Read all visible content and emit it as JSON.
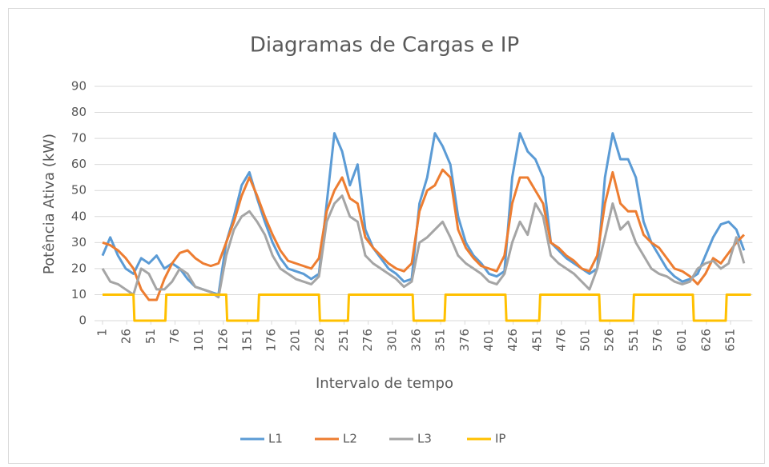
{
  "chart_data": {
    "type": "line",
    "title": "Diagramas de Cargas e IP",
    "x_label": "Intervalo de tempo",
    "y_label": "Potência Ativa (kW)",
    "xlim": [
      1,
      672
    ],
    "xticks": [
      1,
      26,
      51,
      76,
      101,
      126,
      151,
      176,
      201,
      226,
      251,
      276,
      301,
      326,
      351,
      376,
      401,
      426,
      451,
      476,
      501,
      526,
      551,
      576,
      601,
      626,
      651
    ],
    "ylim": [
      0,
      90
    ],
    "yticks": [
      0,
      10,
      20,
      30,
      40,
      50,
      60,
      70,
      80,
      90
    ],
    "grid": true,
    "legend": "bottom",
    "series": [
      {
        "name": "L1",
        "color": "#5b9bd5",
        "x": [
          1,
          9,
          17,
          25,
          33,
          41,
          49,
          57,
          65,
          73,
          81,
          89,
          97,
          105,
          113,
          121,
          129,
          137,
          145,
          153,
          161,
          169,
          177,
          185,
          193,
          201,
          209,
          217,
          225,
          233,
          241,
          249,
          257,
          265,
          273,
          281,
          289,
          297,
          305,
          313,
          321,
          329,
          337,
          345,
          353,
          361,
          369,
          377,
          385,
          393,
          401,
          409,
          417,
          425,
          433,
          441,
          449,
          457,
          465,
          473,
          481,
          489,
          497,
          505,
          513,
          521,
          529,
          537,
          545,
          553,
          561,
          569,
          577,
          585,
          593,
          601,
          609,
          617,
          625,
          633,
          641,
          649,
          657,
          665
        ],
        "values": [
          25,
          32,
          25,
          20,
          18,
          24,
          22,
          25,
          20,
          22,
          20,
          16,
          13,
          12,
          11,
          10,
          30,
          40,
          52,
          57,
          47,
          38,
          30,
          24,
          20,
          19,
          18,
          16,
          18,
          45,
          72,
          65,
          52,
          60,
          35,
          28,
          24,
          20,
          18,
          15,
          16,
          45,
          55,
          72,
          67,
          60,
          40,
          30,
          25,
          22,
          18,
          17,
          19,
          55,
          72,
          65,
          62,
          55,
          30,
          27,
          24,
          22,
          20,
          18,
          20,
          55,
          72,
          62,
          62,
          55,
          38,
          30,
          25,
          20,
          17,
          15,
          16,
          18,
          25,
          32,
          37,
          38,
          35,
          27
        ]
      },
      {
        "name": "L2",
        "color": "#ed7d31",
        "x": [
          1,
          9,
          17,
          25,
          33,
          41,
          49,
          57,
          65,
          73,
          81,
          89,
          97,
          105,
          113,
          121,
          129,
          137,
          145,
          153,
          161,
          169,
          177,
          185,
          193,
          201,
          209,
          217,
          225,
          233,
          241,
          249,
          257,
          265,
          273,
          281,
          289,
          297,
          305,
          313,
          321,
          329,
          337,
          345,
          353,
          361,
          369,
          377,
          385,
          393,
          401,
          409,
          417,
          425,
          433,
          441,
          449,
          457,
          465,
          473,
          481,
          489,
          497,
          505,
          513,
          521,
          529,
          537,
          545,
          553,
          561,
          569,
          577,
          585,
          593,
          601,
          609,
          617,
          625,
          633,
          641,
          649,
          657,
          665
        ],
        "values": [
          30,
          29,
          27,
          24,
          20,
          12,
          8,
          8,
          16,
          22,
          26,
          27,
          24,
          22,
          21,
          22,
          30,
          38,
          48,
          55,
          48,
          40,
          33,
          27,
          23,
          22,
          21,
          20,
          24,
          42,
          50,
          55,
          47,
          45,
          32,
          28,
          25,
          22,
          20,
          19,
          22,
          42,
          50,
          52,
          58,
          55,
          35,
          28,
          24,
          21,
          20,
          19,
          25,
          45,
          55,
          55,
          50,
          45,
          30,
          28,
          25,
          23,
          20,
          19,
          25,
          45,
          57,
          45,
          42,
          42,
          33,
          30,
          28,
          24,
          20,
          19,
          17,
          14,
          18,
          24,
          22,
          26,
          30,
          33
        ]
      },
      {
        "name": "L3",
        "color": "#a5a5a5",
        "x": [
          1,
          9,
          17,
          25,
          33,
          41,
          49,
          57,
          65,
          73,
          81,
          89,
          97,
          105,
          113,
          121,
          129,
          137,
          145,
          153,
          161,
          169,
          177,
          185,
          193,
          201,
          209,
          217,
          225,
          233,
          241,
          249,
          257,
          265,
          273,
          281,
          289,
          297,
          305,
          313,
          321,
          329,
          337,
          345,
          353,
          361,
          369,
          377,
          385,
          393,
          401,
          409,
          417,
          425,
          433,
          441,
          449,
          457,
          465,
          473,
          481,
          489,
          497,
          505,
          513,
          521,
          529,
          537,
          545,
          553,
          561,
          569,
          577,
          585,
          593,
          601,
          609,
          617,
          625,
          633,
          641,
          649,
          657,
          665
        ],
        "values": [
          20,
          15,
          14,
          12,
          10,
          20,
          18,
          12,
          12,
          15,
          20,
          18,
          13,
          12,
          11,
          9,
          25,
          35,
          40,
          42,
          38,
          33,
          25,
          20,
          18,
          16,
          15,
          14,
          17,
          38,
          45,
          48,
          40,
          38,
          25,
          22,
          20,
          18,
          16,
          13,
          15,
          30,
          32,
          35,
          38,
          32,
          25,
          22,
          20,
          18,
          15,
          14,
          18,
          30,
          38,
          33,
          45,
          40,
          25,
          22,
          20,
          18,
          15,
          12,
          20,
          32,
          45,
          35,
          38,
          30,
          25,
          20,
          18,
          17,
          15,
          14,
          15,
          20,
          22,
          23,
          20,
          22,
          32,
          22
        ]
      },
      {
        "name": "IP",
        "color": "#ffc000",
        "x": [
          1,
          33,
          34,
          66,
          67,
          129,
          130,
          162,
          163,
          225,
          226,
          255,
          256,
          322,
          323,
          355,
          356,
          418,
          419,
          453,
          454,
          515,
          516,
          550,
          551,
          612,
          613,
          646,
          647,
          672
        ],
        "values": [
          10,
          10,
          0,
          0,
          10,
          10,
          0,
          0,
          10,
          10,
          0,
          0,
          10,
          10,
          0,
          0,
          10,
          10,
          0,
          0,
          10,
          10,
          0,
          0,
          10,
          10,
          0,
          0,
          10,
          10
        ]
      }
    ]
  }
}
